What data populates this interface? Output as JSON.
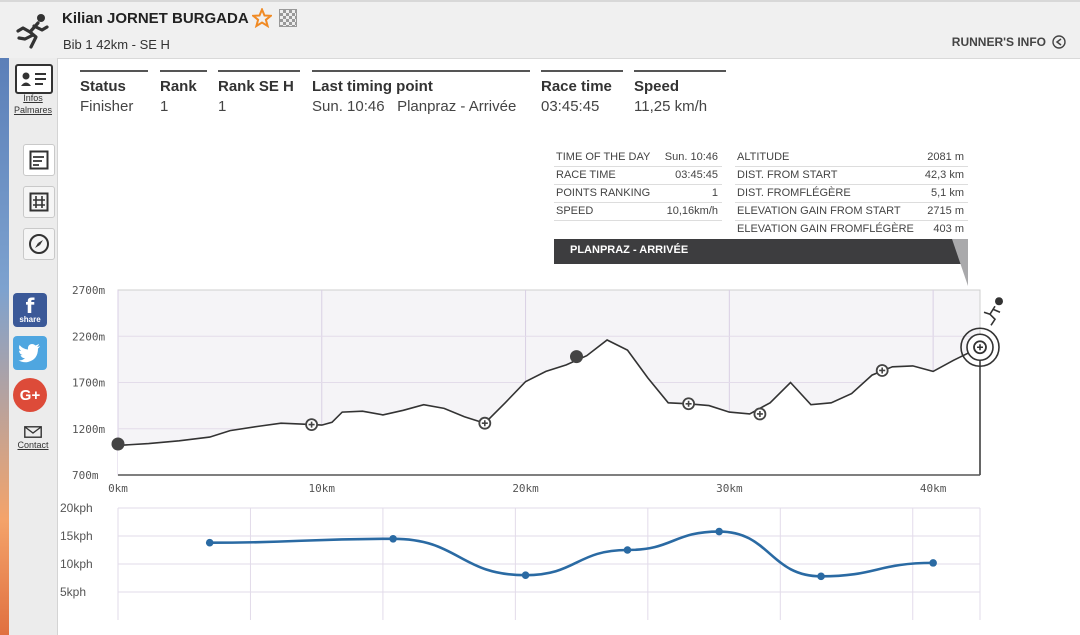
{
  "header": {
    "runner_name": "Kilian JORNET BURGADA",
    "bib_info": "Bib 1   42km - SE H",
    "runner_info_label": "RUNNER'S INFO"
  },
  "icons": {
    "runner": "runner-icon",
    "favorite": "star-icon",
    "compare": "checkered-flag-icon",
    "back": "back-arrow-icon"
  },
  "colors": {
    "favorite_star": "#f08a24",
    "profile_line": "#333333",
    "speed_line": "#2a6aa3",
    "banner": "#3d3d3f",
    "facebook": "#3b5998",
    "twitter": "#4fa6e0",
    "google": "#dd4b39"
  },
  "sidebar": {
    "infos_label": "Infos",
    "palmares_label": "Palmares",
    "contact_label": "Contact",
    "facebook_label": "share"
  },
  "stats": [
    {
      "label": "Status",
      "value": "Finisher"
    },
    {
      "label": "Rank",
      "value": "1"
    },
    {
      "label": "Rank SE H",
      "value": "1"
    },
    {
      "label": "Last timing point",
      "value": "Sun. 10:46   Planpraz - Arrivée"
    },
    {
      "label": "Race time",
      "value": "03:45:45"
    },
    {
      "label": "Speed",
      "value": "11,25 km/h"
    }
  ],
  "point_info": {
    "left": [
      {
        "key": "TIME OF THE DAY",
        "value": "Sun. 10:46"
      },
      {
        "key": "RACE TIME",
        "value": "03:45:45"
      },
      {
        "key": "POINTS RANKING",
        "value": "1"
      },
      {
        "key": "SPEED",
        "value": "10,16km/h"
      }
    ],
    "right": [
      {
        "key": "ALTITUDE",
        "value": "2081 m"
      },
      {
        "key": "DIST. FROM START",
        "value": "42,3 km"
      },
      {
        "key": "DIST. FROMFLÉGÈRE",
        "value": "5,1 km"
      },
      {
        "key": "ELEVATION GAIN FROM START",
        "value": "2715 m"
      },
      {
        "key": "ELEVATION GAIN FROMFLÉGÈRE",
        "value": "403 m"
      }
    ],
    "point_name": "PLANPRAZ - ARRIVÉE"
  },
  "chart_data": [
    {
      "type": "area",
      "x_unit": "km",
      "y_unit": "m",
      "xlim": [
        0,
        43
      ],
      "ylim": [
        700,
        2700
      ],
      "x_ticks": [
        "0km",
        "10km",
        "20km",
        "30km",
        "40km"
      ],
      "y_ticks": [
        "2700m",
        "2200m",
        "1700m",
        "1200m",
        "700m"
      ],
      "grid": true,
      "profile_km": [
        0,
        1.5,
        3,
        4.5,
        5.5,
        7,
        8,
        9,
        10,
        10.5,
        11,
        12,
        13,
        14,
        15,
        16,
        17,
        18,
        19,
        20,
        21,
        22,
        23,
        24,
        25,
        26,
        27,
        28,
        29,
        30,
        31,
        32,
        33,
        34,
        35,
        36,
        37,
        38,
        39,
        40,
        41,
        42.3
      ],
      "profile_alt": [
        1020,
        1040,
        1070,
        1110,
        1180,
        1230,
        1260,
        1250,
        1240,
        1270,
        1380,
        1390,
        1350,
        1400,
        1460,
        1420,
        1330,
        1260,
        1480,
        1710,
        1820,
        1890,
        1990,
        2160,
        2050,
        1750,
        1480,
        1470,
        1450,
        1380,
        1360,
        1480,
        1700,
        1460,
        1480,
        1580,
        1780,
        1870,
        1880,
        1820,
        1940,
        2081
      ],
      "timing_points": [
        {
          "km": 0,
          "alt": 1035,
          "kind": "start"
        },
        {
          "km": 9.5,
          "alt": 1245,
          "kind": "checkpoint"
        },
        {
          "km": 18,
          "alt": 1260,
          "kind": "checkpoint"
        },
        {
          "km": 22.5,
          "alt": 1980,
          "kind": "current"
        },
        {
          "km": 28,
          "alt": 1470,
          "kind": "checkpoint"
        },
        {
          "km": 31.5,
          "alt": 1360,
          "kind": "checkpoint"
        },
        {
          "km": 37.5,
          "alt": 1830,
          "kind": "checkpoint"
        },
        {
          "km": 42.3,
          "alt": 2081,
          "kind": "finish"
        }
      ]
    },
    {
      "type": "line",
      "y_unit": "kph",
      "ylim": [
        0,
        20
      ],
      "y_ticks": [
        "20kph",
        "15kph",
        "10kph",
        "5kph"
      ],
      "grid": true,
      "x": [
        4.5,
        13.5,
        20,
        25,
        29.5,
        34.5,
        40
      ],
      "values": [
        13.8,
        14.5,
        8,
        12.5,
        15.8,
        7.8,
        10.2
      ]
    }
  ]
}
